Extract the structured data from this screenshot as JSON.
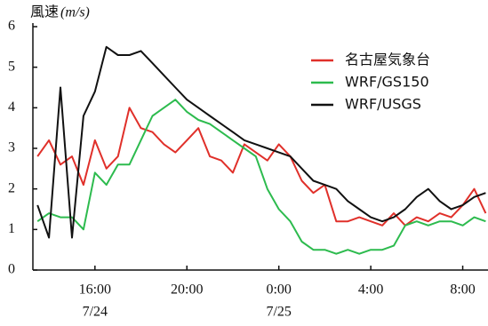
{
  "chart_data": {
    "type": "line",
    "y_label": "風速",
    "y_unit": "(m/s)",
    "x": [
      13.5,
      14,
      14.5,
      15,
      15.5,
      16,
      16.5,
      17,
      17.5,
      18,
      18.5,
      19,
      19.5,
      20,
      20.5,
      21,
      21.5,
      22,
      22.5,
      23,
      23.5,
      24,
      24.5,
      25,
      25.5,
      26,
      26.5,
      27,
      27.5,
      28,
      28.5,
      29,
      29.5,
      30,
      30.5,
      31,
      31.5,
      32,
      32.5,
      33
    ],
    "series": [
      {
        "name": "名古屋気象台",
        "color": "#e0302a",
        "values": [
          2.8,
          3.2,
          2.6,
          2.8,
          2.1,
          3.2,
          2.5,
          2.8,
          4.0,
          3.5,
          3.4,
          3.1,
          2.9,
          3.2,
          3.5,
          2.8,
          2.7,
          2.4,
          3.1,
          2.9,
          2.7,
          3.1,
          2.8,
          2.2,
          1.9,
          2.1,
          1.2,
          1.2,
          1.3,
          1.2,
          1.1,
          1.4,
          1.1,
          1.3,
          1.2,
          1.4,
          1.3,
          1.6,
          2.0,
          1.4
        ]
      },
      {
        "name": "WRF/GS150",
        "color": "#2dbb4e",
        "values": [
          1.2,
          1.4,
          1.3,
          1.3,
          1.0,
          2.4,
          2.1,
          2.6,
          2.6,
          3.2,
          3.8,
          4.0,
          4.2,
          3.9,
          3.7,
          3.6,
          3.4,
          3.2,
          3.0,
          2.8,
          2.0,
          1.5,
          1.2,
          0.7,
          0.5,
          0.5,
          0.4,
          0.5,
          0.4,
          0.5,
          0.5,
          0.6,
          1.1,
          1.2,
          1.1,
          1.2,
          1.2,
          1.1,
          1.3,
          1.2
        ]
      },
      {
        "name": "WRF/USGS",
        "color": "#111111",
        "values": [
          1.6,
          0.8,
          4.5,
          0.8,
          3.8,
          4.4,
          5.5,
          5.3,
          5.3,
          5.4,
          5.1,
          4.8,
          4.5,
          4.2,
          4.0,
          3.8,
          3.6,
          3.4,
          3.2,
          3.1,
          3.0,
          2.9,
          2.8,
          2.5,
          2.2,
          2.1,
          2.0,
          1.7,
          1.5,
          1.3,
          1.2,
          1.3,
          1.5,
          1.8,
          2.0,
          1.7,
          1.5,
          1.6,
          1.8,
          1.9
        ]
      }
    ],
    "xlim": [
      13.3,
      33.1
    ],
    "xticks": [
      {
        "value": 16,
        "label": "16:00"
      },
      {
        "value": 20,
        "label": "20:00"
      },
      {
        "value": 24,
        "label": "0:00"
      },
      {
        "value": 28,
        "label": "4:00"
      },
      {
        "value": 32,
        "label": "8:00"
      }
    ],
    "date_labels": [
      {
        "x": 16,
        "text": "7/24"
      },
      {
        "x": 24,
        "text": "7/25"
      }
    ],
    "ylim": [
      0,
      6
    ],
    "yticks": [
      0,
      1,
      2,
      3,
      4,
      5,
      6
    ],
    "legend": "upper right"
  }
}
